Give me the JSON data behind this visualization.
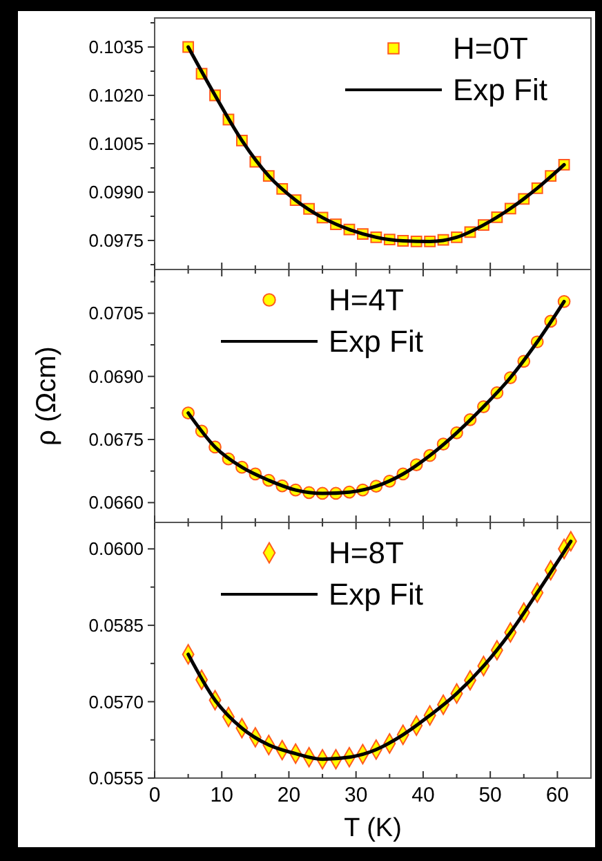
{
  "chart_data": [
    {
      "type": "scatter",
      "xlim": [
        0,
        65
      ],
      "xticks": [
        0,
        {
          "value": 5,
          "label": null
        },
        10,
        {
          "value": 15,
          "label": null
        },
        20,
        {
          "value": 25,
          "label": null
        },
        30,
        {
          "value": 35,
          "label": null
        },
        40,
        {
          "value": 45,
          "label": null
        },
        50,
        {
          "value": 55,
          "label": null
        },
        60
      ],
      "tick_labels": "y",
      "legend": "top right",
      "ylim": [
        0.0966,
        0.1044
      ],
      "yticks": [
        {
          "value": 0.09675,
          "label": null
        },
        {
          "value": 0.0975,
          "label": "0.0975"
        },
        {
          "value": 0.09825,
          "label": null
        },
        {
          "value": 0.099,
          "label": "0.0990"
        },
        {
          "value": 0.09975,
          "label": null
        },
        {
          "value": 0.1005,
          "label": "0.1005"
        },
        {
          "value": 0.10125,
          "label": null
        },
        {
          "value": 0.102,
          "label": "0.1020"
        },
        {
          "value": 0.10275,
          "label": null
        },
        {
          "value": 0.1035,
          "label": "0.1035"
        },
        {
          "value": 0.10425,
          "label": null
        }
      ],
      "series": [
        {
          "name": "H=0T",
          "marker": "square",
          "color": "#ffff00",
          "x": [
            5,
            7,
            9,
            11,
            13,
            15,
            17,
            19,
            21,
            23,
            25,
            27,
            29,
            31,
            33,
            35,
            37,
            39,
            41,
            43,
            45,
            47,
            49,
            51,
            53,
            55,
            57,
            59,
            61
          ],
          "values": [
            0.1035,
            0.10267,
            0.102,
            0.10125,
            0.1006,
            0.09994,
            0.0995,
            0.0991,
            0.09875,
            0.09848,
            0.09821,
            0.098,
            0.09784,
            0.0977,
            0.0976,
            0.09753,
            0.09749,
            0.09747,
            0.09747,
            0.09752,
            0.0976,
            0.09776,
            0.09798,
            0.09822,
            0.09849,
            0.09879,
            0.09912,
            0.0995,
            0.09985
          ]
        },
        {
          "name": "Exp Fit",
          "type": "line",
          "line_style": "solid",
          "color": "#000000",
          "x": [
            5,
            9,
            13,
            17,
            21,
            25,
            29,
            33,
            37,
            41,
            45,
            49,
            53,
            57,
            61
          ],
          "values": [
            0.1035,
            0.102,
            0.1006,
            0.0995,
            0.09875,
            0.09821,
            0.09784,
            0.0976,
            0.09749,
            0.09747,
            0.0976,
            0.09798,
            0.09849,
            0.09912,
            0.09985
          ]
        }
      ]
    },
    {
      "type": "scatter",
      "xlim": [
        0,
        65
      ],
      "xticks": [
        0,
        {
          "value": 5,
          "label": null
        },
        10,
        {
          "value": 15,
          "label": null
        },
        20,
        {
          "value": 25,
          "label": null
        },
        30,
        {
          "value": 35,
          "label": null
        },
        40,
        {
          "value": 45,
          "label": null
        },
        50,
        {
          "value": 55,
          "label": null
        },
        60
      ],
      "tick_labels": "y",
      "legend": "top",
      "ylabel": "ρ (Ωcm)",
      "ylim": [
        0.06553,
        0.07154
      ],
      "yticks": [
        {
          "value": 0.066,
          "label": "0.0660"
        },
        {
          "value": 0.06675,
          "label": null
        },
        {
          "value": 0.0675,
          "label": "0.0675"
        },
        {
          "value": 0.06825,
          "label": null
        },
        {
          "value": 0.069,
          "label": "0.0690"
        },
        {
          "value": 0.06975,
          "label": null
        },
        {
          "value": 0.0705,
          "label": "0.0705"
        },
        {
          "value": 0.07125,
          "label": null
        }
      ],
      "series": [
        {
          "name": "H=4T",
          "marker": "circle",
          "color": "#ffff00",
          "x": [
            5,
            7,
            9,
            11,
            13,
            15,
            17,
            19,
            21,
            23,
            25,
            27,
            29,
            31,
            33,
            35,
            37,
            39,
            41,
            43,
            45,
            47,
            49,
            51,
            53,
            55,
            57,
            59,
            61
          ],
          "values": [
            0.06813,
            0.0677,
            0.06732,
            0.06704,
            0.06684,
            0.06668,
            0.06653,
            0.0664,
            0.0663,
            0.06624,
            0.06622,
            0.06622,
            0.06625,
            0.0663,
            0.06639,
            0.06651,
            0.06668,
            0.0669,
            0.06712,
            0.06739,
            0.06766,
            0.06797,
            0.06828,
            0.06861,
            0.06897,
            0.06936,
            0.06982,
            0.07031,
            0.07078
          ]
        },
        {
          "name": "Exp Fit",
          "type": "line",
          "line_style": "solid",
          "color": "#000000",
          "x": [
            5,
            9,
            13,
            17,
            21,
            25,
            29,
            33,
            37,
            41,
            45,
            49,
            53,
            57,
            61
          ],
          "values": [
            0.06813,
            0.06732,
            0.06684,
            0.06653,
            0.0663,
            0.06622,
            0.06625,
            0.06639,
            0.06668,
            0.06712,
            0.06766,
            0.06828,
            0.06897,
            0.06982,
            0.07078
          ]
        }
      ]
    },
    {
      "type": "scatter",
      "xlim": [
        0,
        65
      ],
      "xticks": [
        0,
        {
          "value": 5,
          "label": null
        },
        10,
        {
          "value": 15,
          "label": null
        },
        20,
        {
          "value": 25,
          "label": null
        },
        30,
        {
          "value": 35,
          "label": null
        },
        40,
        {
          "value": 45,
          "label": null
        },
        50,
        {
          "value": 55,
          "label": null
        },
        60
      ],
      "legend": "top",
      "xlabel": "T (K)",
      "ylim": [
        0.0555,
        0.06052
      ],
      "yticks": [
        {
          "value": 0.0555,
          "label": "0.0555"
        },
        {
          "value": 0.05625,
          "label": null
        },
        {
          "value": 0.057,
          "label": "0.0570"
        },
        {
          "value": 0.05775,
          "label": null
        },
        {
          "value": 0.0585,
          "label": "0.0585"
        },
        {
          "value": 0.05925,
          "label": null
        },
        {
          "value": 0.06,
          "label": "0.0600"
        }
      ],
      "series": [
        {
          "name": "H=8T",
          "marker": "diamond",
          "color": "#ffff00",
          "x": [
            5,
            7,
            9,
            11,
            13,
            15,
            17,
            19,
            21,
            23,
            25,
            27,
            29,
            31,
            33,
            35,
            37,
            39,
            41,
            43,
            45,
            47,
            49,
            51,
            53,
            55,
            57,
            59,
            61,
            62
          ],
          "values": [
            0.05793,
            0.05743,
            0.05703,
            0.0567,
            0.05648,
            0.0563,
            0.05615,
            0.05605,
            0.05598,
            0.05591,
            0.05587,
            0.05587,
            0.05591,
            0.05597,
            0.05606,
            0.05618,
            0.05635,
            0.05653,
            0.05673,
            0.05694,
            0.05716,
            0.05742,
            0.0577,
            0.05801,
            0.05836,
            0.05875,
            0.05914,
            0.05958,
            0.06,
            0.06015
          ]
        },
        {
          "name": "Exp Fit",
          "type": "line",
          "line_style": "solid",
          "color": "#000000",
          "x": [
            5,
            9,
            13,
            17,
            21,
            25,
            29,
            33,
            37,
            41,
            45,
            49,
            53,
            57,
            62
          ],
          "values": [
            0.05793,
            0.05703,
            0.05648,
            0.05615,
            0.05598,
            0.05587,
            0.05591,
            0.05606,
            0.05635,
            0.05673,
            0.05716,
            0.0577,
            0.05836,
            0.05914,
            0.06015
          ]
        }
      ]
    }
  ]
}
